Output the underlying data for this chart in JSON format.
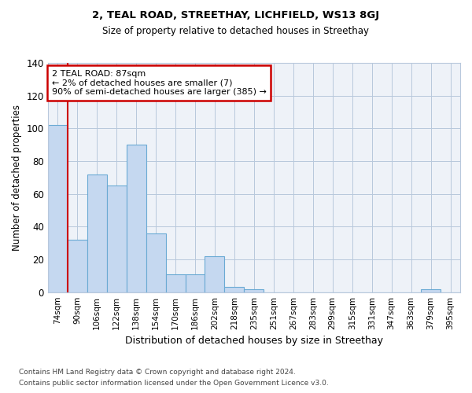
{
  "title1": "2, TEAL ROAD, STREETHAY, LICHFIELD, WS13 8GJ",
  "title2": "Size of property relative to detached houses in Streethay",
  "xlabel": "Distribution of detached houses by size in Streethay",
  "ylabel": "Number of detached properties",
  "footer1": "Contains HM Land Registry data © Crown copyright and database right 2024.",
  "footer2": "Contains public sector information licensed under the Open Government Licence v3.0.",
  "annotation_line1": "2 TEAL ROAD: 87sqm",
  "annotation_line2": "← 2% of detached houses are smaller (7)",
  "annotation_line3": "90% of semi-detached houses are larger (385) →",
  "bar_color": "#c5d8f0",
  "bar_edge_color": "#6aaad4",
  "marker_line_color": "#cc0000",
  "annotation_box_edge_color": "#cc0000",
  "background_color": "#eef2f8",
  "grid_color": "#b8c8dc",
  "categories": [
    "74sqm",
    "90sqm",
    "106sqm",
    "122sqm",
    "138sqm",
    "154sqm",
    "170sqm",
    "186sqm",
    "202sqm",
    "218sqm",
    "235sqm",
    "251sqm",
    "267sqm",
    "283sqm",
    "299sqm",
    "315sqm",
    "331sqm",
    "347sqm",
    "363sqm",
    "379sqm",
    "395sqm"
  ],
  "values": [
    102,
    32,
    72,
    65,
    90,
    36,
    11,
    11,
    22,
    3,
    2,
    0,
    0,
    0,
    0,
    0,
    0,
    0,
    0,
    2,
    0
  ],
  "marker_bin_index": 1,
  "ylim": [
    0,
    140
  ],
  "yticks": [
    0,
    20,
    40,
    60,
    80,
    100,
    120,
    140
  ]
}
